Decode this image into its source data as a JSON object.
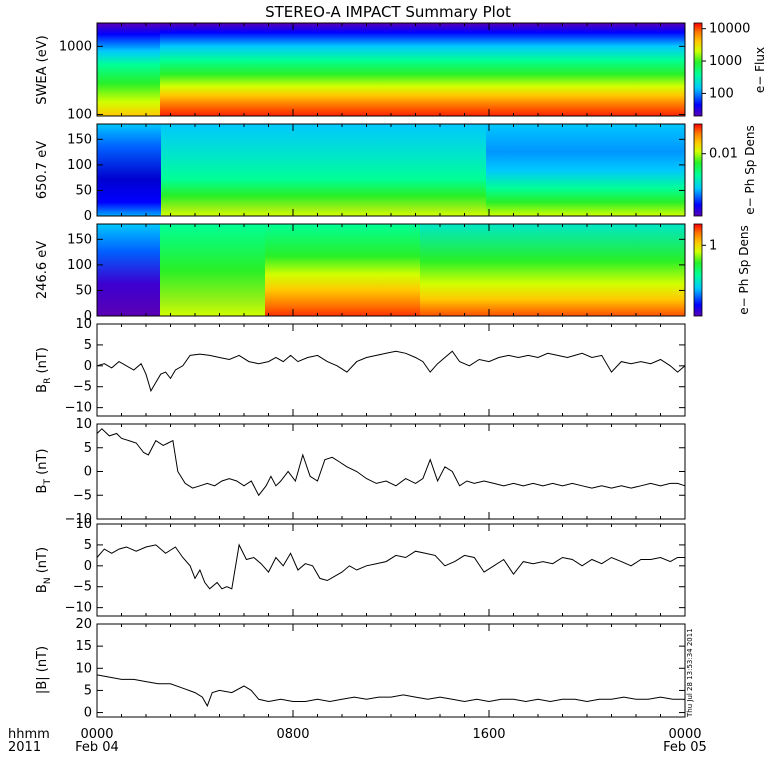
{
  "title": "STEREO-A IMPACT Summary Plot",
  "xaxis": {
    "corner_label": "hhmm",
    "corner_year": "2011",
    "ticks": [
      {
        "hour": 0,
        "time": "0000",
        "date": "Feb 04"
      },
      {
        "hour": 8,
        "time": "0800",
        "date": ""
      },
      {
        "hour": 16,
        "time": "1600",
        "date": ""
      },
      {
        "hour": 24,
        "time": "0000",
        "date": "Feb 05"
      }
    ],
    "range_hours": [
      0,
      24
    ],
    "minor_tick_step_hours": 1
  },
  "timestamp": "Thu Jul 28 13:53:34 2011",
  "colors": {
    "line": "#000000",
    "spectrogram_scale": [
      "#5a00b4",
      "#0000ff",
      "#00c8ff",
      "#00ff96",
      "#28f028",
      "#d2ff00",
      "#ffc800",
      "#ff7800",
      "#ff0000"
    ]
  },
  "chart_data": [
    {
      "type": "heatmap",
      "panel": "swea",
      "ylabel": "SWEA (eV)",
      "yscale": "log",
      "ylim": [
        95,
        2200
      ],
      "yticks": [
        100,
        1000
      ],
      "ytick_labels": [
        "100",
        "1000"
      ],
      "colorbar": {
        "label": "e− Flux",
        "scale": "log",
        "ticks": [
          100,
          1000,
          10000
        ],
        "tick_labels": [
          "100",
          "1000",
          "10000"
        ],
        "range": [
          20,
          15000
        ]
      }
    },
    {
      "type": "heatmap",
      "panel": "pad650",
      "ylabel": "650.7 eV",
      "ylim": [
        0,
        180
      ],
      "yticks": [
        0,
        50,
        100,
        150
      ],
      "ytick_labels": [
        "0",
        "50",
        "100",
        "150"
      ],
      "colorbar": {
        "label": "e− Ph Sp Dens",
        "scale": "log",
        "ticks": [
          0.01
        ],
        "tick_labels": [
          "0.01"
        ],
        "range": [
          0.001,
          0.03
        ]
      }
    },
    {
      "type": "heatmap",
      "panel": "pad246",
      "ylabel": "246.6 eV",
      "ylim": [
        0,
        180
      ],
      "yticks": [
        0,
        50,
        100,
        150
      ],
      "ytick_labels": [
        "0",
        "50",
        "100",
        "150"
      ],
      "colorbar": {
        "label": "e− Ph Sp Dens",
        "scale": "log",
        "ticks": [
          1
        ],
        "tick_labels": [
          "1"
        ],
        "range": [
          0.1,
          2
        ]
      }
    },
    {
      "type": "line",
      "panel": "br",
      "ylabel": "B",
      "ylabel_sub": "R",
      "ylabel_unit": " (nT)",
      "ylim": [
        -12,
        10
      ],
      "yticks": [
        -10,
        -5,
        0,
        5,
        10
      ],
      "ytick_labels": [
        "−10",
        "−5",
        "0",
        "5",
        "10"
      ],
      "x": [
        0,
        0.3,
        0.6,
        0.9,
        1.2,
        1.5,
        1.8,
        2.0,
        2.2,
        2.4,
        2.6,
        2.8,
        3.0,
        3.2,
        3.5,
        3.8,
        4.2,
        4.6,
        5.0,
        5.4,
        5.8,
        6.2,
        6.6,
        7.0,
        7.3,
        7.6,
        7.9,
        8.2,
        8.6,
        9.0,
        9.4,
        9.8,
        10.2,
        10.6,
        11.0,
        11.4,
        11.8,
        12.2,
        12.6,
        13.0,
        13.3,
        13.6,
        13.9,
        14.2,
        14.5,
        14.8,
        15.2,
        15.6,
        16.0,
        16.4,
        16.8,
        17.2,
        17.6,
        18.0,
        18.4,
        18.8,
        19.2,
        19.5,
        19.8,
        20.2,
        20.6,
        21.0,
        21.4,
        21.8,
        22.2,
        22.6,
        23.0,
        23.4,
        23.7,
        24.0
      ],
      "values": [
        0,
        0.5,
        -0.5,
        1,
        0,
        -1,
        0.5,
        -2,
        -6,
        -4,
        -2,
        -1.5,
        -3,
        -1,
        0,
        2.5,
        2.8,
        2.5,
        2.0,
        1.5,
        2.5,
        1.0,
        0.5,
        1.0,
        2.0,
        1.0,
        2.5,
        1.0,
        2.0,
        2.5,
        1.0,
        0,
        -1.5,
        1.0,
        2.0,
        2.5,
        3.0,
        3.5,
        3.0,
        2.0,
        1.0,
        -1.5,
        0.5,
        2.0,
        3.5,
        1.0,
        0,
        1.5,
        1.0,
        2.0,
        2.5,
        2.0,
        2.5,
        2.0,
        3.0,
        2.5,
        2.0,
        2.5,
        3.0,
        2.0,
        2.5,
        -1.5,
        1.0,
        0.5,
        1.0,
        0.5,
        1.5,
        0,
        -1.5,
        0
      ]
    },
    {
      "type": "line",
      "panel": "bt",
      "ylabel": "B",
      "ylabel_sub": "T",
      "ylabel_unit": " (nT)",
      "ylim": [
        -10,
        10
      ],
      "yticks": [
        -10,
        -5,
        0,
        5,
        10
      ],
      "ytick_labels": [
        "−10",
        "−5",
        "0",
        "5",
        "10"
      ],
      "x": [
        0,
        0.2,
        0.5,
        0.8,
        1.0,
        1.3,
        1.6,
        1.9,
        2.1,
        2.4,
        2.7,
        2.9,
        3.1,
        3.3,
        3.6,
        3.9,
        4.2,
        4.5,
        4.8,
        5.1,
        5.4,
        5.7,
        6.0,
        6.3,
        6.6,
        6.9,
        7.1,
        7.3,
        7.5,
        7.8,
        8.1,
        8.4,
        8.7,
        9.0,
        9.3,
        9.6,
        9.9,
        10.2,
        10.6,
        11.0,
        11.4,
        11.8,
        12.2,
        12.6,
        13.0,
        13.3,
        13.6,
        13.9,
        14.2,
        14.5,
        14.8,
        15.1,
        15.4,
        15.8,
        16.2,
        16.6,
        17.0,
        17.4,
        17.8,
        18.2,
        18.6,
        19.0,
        19.4,
        19.8,
        20.2,
        20.6,
        21.0,
        21.4,
        21.8,
        22.2,
        22.6,
        23.0,
        23.4,
        23.7,
        24.0
      ],
      "values": [
        8,
        9,
        7.5,
        8,
        7,
        6.5,
        6,
        4,
        3.5,
        6.5,
        5.5,
        6,
        6.5,
        0,
        -2.5,
        -3.5,
        -3,
        -2.5,
        -3,
        -2,
        -1.5,
        -2,
        -3,
        -2,
        -5,
        -3,
        -1,
        -3,
        -2,
        0,
        -2,
        3.5,
        -1,
        -2,
        2.5,
        3.0,
        2.0,
        1.0,
        0,
        -1.5,
        -2.5,
        -2,
        -3,
        -1.5,
        -2.5,
        -1.5,
        2.5,
        -2.0,
        1.0,
        0,
        -3,
        -2.0,
        -2.5,
        -2,
        -2.5,
        -3,
        -2.5,
        -3,
        -2.5,
        -3,
        -2.5,
        -3,
        -2.5,
        -3,
        -3.5,
        -3,
        -3.5,
        -3,
        -3.5,
        -3,
        -2.5,
        -3,
        -2.5,
        -2.5,
        -3
      ]
    },
    {
      "type": "line",
      "panel": "bn",
      "ylabel": "B",
      "ylabel_sub": "N",
      "ylabel_unit": " (nT)",
      "ylim": [
        -12,
        10
      ],
      "yticks": [
        -10,
        -5,
        0,
        5,
        10
      ],
      "ytick_labels": [
        "−10",
        "−5",
        "0",
        "5",
        "10"
      ],
      "x": [
        0,
        0.3,
        0.6,
        0.9,
        1.2,
        1.6,
        2.0,
        2.4,
        2.8,
        3.2,
        3.5,
        3.8,
        4.0,
        4.2,
        4.4,
        4.6,
        4.9,
        5.1,
        5.3,
        5.5,
        5.8,
        6.1,
        6.4,
        6.7,
        7.0,
        7.3,
        7.6,
        7.9,
        8.2,
        8.5,
        8.8,
        9.1,
        9.4,
        9.7,
        10.0,
        10.3,
        10.6,
        11.0,
        11.4,
        11.8,
        12.2,
        12.6,
        13.0,
        13.4,
        13.8,
        14.2,
        14.6,
        15.0,
        15.4,
        15.8,
        16.2,
        16.6,
        17.0,
        17.4,
        17.8,
        18.2,
        18.6,
        19.0,
        19.4,
        19.8,
        20.2,
        20.6,
        21.0,
        21.4,
        21.8,
        22.2,
        22.6,
        23.0,
        23.4,
        23.7,
        24.0
      ],
      "values": [
        2,
        4,
        3,
        4,
        4.5,
        3.5,
        4.5,
        5,
        3,
        4.5,
        2,
        0,
        -3,
        -1,
        -4,
        -5.5,
        -4,
        -5.5,
        -5,
        -5.5,
        5,
        1.5,
        2,
        0.5,
        -1.5,
        2,
        0,
        3,
        -1,
        0.5,
        0,
        -3,
        -3.5,
        -2.5,
        -1.5,
        0,
        -1,
        0,
        0.5,
        1,
        2.5,
        2,
        3.5,
        3,
        2.5,
        0,
        1,
        2.5,
        2,
        -1.5,
        0,
        1.5,
        -2,
        1.0,
        0.5,
        1,
        0.5,
        2,
        1.5,
        0,
        1.5,
        0.5,
        2,
        1,
        0,
        1.5,
        1.5,
        2,
        1,
        2,
        2
      ]
    },
    {
      "type": "line",
      "panel": "btot",
      "ylabel": "|B| (nT)",
      "ylim": [
        -1,
        20
      ],
      "yticks": [
        0,
        5,
        10,
        15,
        20
      ],
      "ytick_labels": [
        "0",
        "5",
        "10",
        "15",
        "20"
      ],
      "x": [
        0,
        0.5,
        1.0,
        1.5,
        2.0,
        2.5,
        3.0,
        3.5,
        4.0,
        4.3,
        4.5,
        4.7,
        5.0,
        5.5,
        6.0,
        6.3,
        6.6,
        7.0,
        7.5,
        8.0,
        8.5,
        9.0,
        9.5,
        10.0,
        10.5,
        11.0,
        11.5,
        12.0,
        12.5,
        13.0,
        13.5,
        14.0,
        14.5,
        15.0,
        15.5,
        16.0,
        16.5,
        17.0,
        17.5,
        18.0,
        18.5,
        19.0,
        19.5,
        20.0,
        20.5,
        21.0,
        21.5,
        22.0,
        22.5,
        23.0,
        23.5,
        24.0
      ],
      "values": [
        8.5,
        8,
        7.5,
        7.5,
        7,
        6.5,
        6.5,
        5.5,
        4.5,
        3.5,
        1.5,
        4.5,
        5,
        4.5,
        6,
        5,
        3,
        2.5,
        3,
        2.5,
        2.5,
        3,
        2.5,
        3,
        3.5,
        3,
        3.5,
        3.5,
        4,
        3.5,
        3,
        3.5,
        3,
        2.5,
        3,
        2.5,
        3,
        3,
        2.5,
        3,
        2.5,
        3,
        3,
        2.5,
        3,
        3,
        3.5,
        3,
        3,
        3.5,
        3,
        3
      ]
    }
  ]
}
